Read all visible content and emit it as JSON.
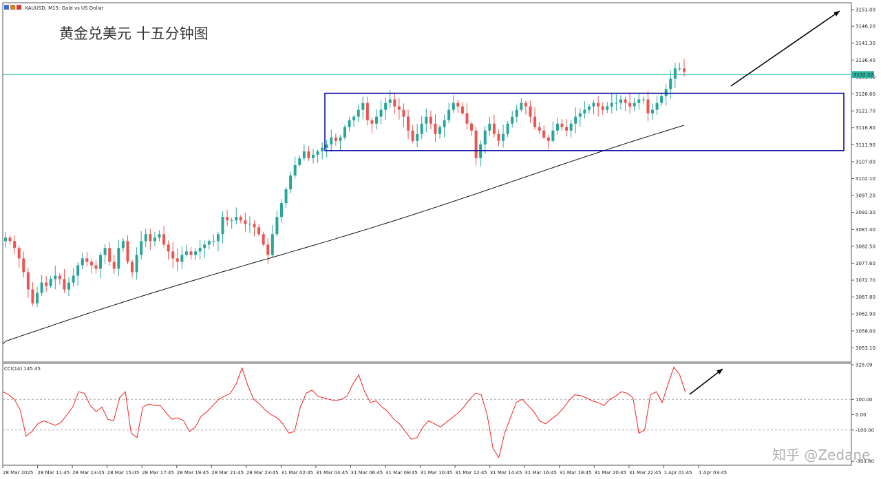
{
  "header": {
    "symbol_label": "XAUUSD, M15:  Gold vs US Dollar",
    "title": "黄金兑美元 十五分钟图"
  },
  "watermark": "知乎 @Zedane",
  "colors": {
    "bull": "#26a69a",
    "bear": "#ef5350",
    "ma": "#111111",
    "box": "#0000a0",
    "bid_line": "#2bb5a0",
    "cci": "#ee2222",
    "grid": "#cccccc"
  },
  "chart_data": [
    {
      "type": "candlestick",
      "symbol": "XAUUSD",
      "timeframe": "M15",
      "ylim": [
        3049.0,
        3153.0
      ],
      "y_ticks": [
        "3151.00",
        "3146.20",
        "3141.30",
        "3136.40",
        "3131.50",
        "3126.60",
        "3121.70",
        "3116.80",
        "3111.90",
        "3107.00",
        "3102.10",
        "3097.20",
        "3092.30",
        "3087.40",
        "3082.50",
        "3077.60",
        "3072.70",
        "3067.80",
        "3062.90",
        "3058.00",
        "3053.10"
      ],
      "x_ticks": [
        "28 Mar 2025",
        "28 Mar 11:45",
        "28 Mar 13:45",
        "28 Mar 15:45",
        "28 Mar 17:45",
        "28 Mar 19:45",
        "28 Mar 21:45",
        "28 Mar 23:45",
        "31 Mar 02:45",
        "31 Mar 04:45",
        "31 Mar 06:45",
        "31 Mar 08:45",
        "31 Mar 10:45",
        "31 Mar 12:45",
        "31 Mar 14:45",
        "31 Mar 16:45",
        "31 Mar 18:45",
        "31 Mar 20:45",
        "31 Mar 22:45",
        "1 Apr 01:45",
        "1 Apr 03:45"
      ],
      "current_price": 3132.22,
      "current_price_label": "3132.22",
      "closes": [
        3085,
        3084,
        3082,
        3079,
        3075,
        3070,
        3066,
        3069,
        3072,
        3071,
        3073,
        3074,
        3073,
        3070,
        3072,
        3074,
        3077,
        3079,
        3078,
        3077,
        3076,
        3080,
        3082,
        3078,
        3076,
        3082,
        3084,
        3078,
        3075,
        3080,
        3084,
        3086,
        3084,
        3085,
        3086,
        3083,
        3081,
        3079,
        3078,
        3080,
        3081,
        3080,
        3081,
        3082,
        3083,
        3084,
        3084,
        3086,
        3091,
        3090,
        3090,
        3091,
        3090,
        3089,
        3089,
        3088,
        3086,
        3083,
        3080,
        3086,
        3091,
        3095,
        3099,
        3103,
        3106,
        3108,
        3110,
        3108,
        3109,
        3110,
        3111,
        3112,
        3114,
        3113,
        3114,
        3117,
        3119,
        3120,
        3122,
        3124,
        3119,
        3118,
        3120,
        3122,
        3124,
        3125,
        3123,
        3122,
        3120,
        3116,
        3113,
        3115,
        3118,
        3120,
        3118,
        3115,
        3117,
        3119,
        3122,
        3124,
        3123,
        3121,
        3118,
        3116,
        3108,
        3112,
        3116,
        3118,
        3115,
        3113,
        3115,
        3118,
        3120,
        3122,
        3124,
        3123,
        3120,
        3117,
        3116,
        3114,
        3113,
        3116,
        3118,
        3117,
        3116,
        3118,
        3120,
        3121,
        3122,
        3123,
        3124,
        3123,
        3122,
        3123,
        3124,
        3124,
        3125,
        3124,
        3123,
        3124,
        3125,
        3125,
        3121,
        3122,
        3124,
        3126,
        3128,
        3131,
        3134,
        3134,
        3133
      ],
      "ma_label": "",
      "box": {
        "y_top": 3126.8,
        "y_bottom": 3110.2
      }
    },
    {
      "type": "line",
      "indicator": "CCI",
      "label": "CCI(14) 145.45",
      "ylim": [
        -330,
        335
      ],
      "y_ticks": [
        "325.09",
        "100.00",
        "0.00",
        "-100.00",
        "-303.80"
      ],
      "levels": [
        100,
        -100
      ],
      "values": [
        150,
        130,
        100,
        30,
        -140,
        -110,
        -60,
        -40,
        -55,
        -70,
        -50,
        0,
        50,
        150,
        140,
        60,
        20,
        50,
        -30,
        -40,
        110,
        150,
        -120,
        -150,
        50,
        70,
        60,
        60,
        10,
        -30,
        -20,
        -40,
        -110,
        -80,
        -10,
        20,
        60,
        100,
        120,
        140,
        200,
        305,
        190,
        100,
        70,
        30,
        0,
        -20,
        -60,
        -120,
        -110,
        50,
        140,
        160,
        120,
        110,
        100,
        90,
        100,
        120,
        200,
        260,
        150,
        80,
        90,
        50,
        20,
        -30,
        -60,
        -110,
        -160,
        -150,
        -80,
        -40,
        -60,
        -80,
        -50,
        -20,
        10,
        50,
        100,
        140,
        130,
        0,
        -220,
        -280,
        -120,
        -20,
        80,
        100,
        60,
        20,
        -40,
        -60,
        -30,
        0,
        40,
        90,
        130,
        125,
        110,
        90,
        80,
        60,
        100,
        120,
        150,
        140,
        110,
        -120,
        -100,
        130,
        150,
        80,
        200,
        310,
        260,
        145
      ]
    }
  ]
}
